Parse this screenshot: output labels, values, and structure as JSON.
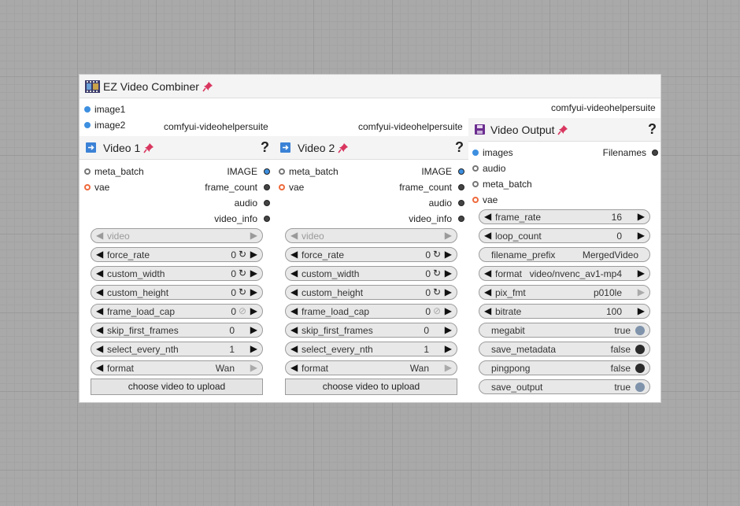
{
  "group": {
    "title": "EZ Video Combiner",
    "inputs": [
      {
        "label": "image1"
      },
      {
        "label": "image2"
      }
    ],
    "source_label": "comfyui-videohelpersuite"
  },
  "video1": {
    "source_label": "comfyui-videohelpersuite",
    "title": "Video 1",
    "help": "?",
    "inputs": [
      {
        "label": "meta_batch"
      },
      {
        "label": "vae"
      }
    ],
    "outputs": [
      {
        "label": "IMAGE"
      },
      {
        "label": "frame_count"
      },
      {
        "label": "audio"
      },
      {
        "label": "video_info"
      }
    ],
    "widgets": {
      "video": {
        "name": "video"
      },
      "force_rate": {
        "name": "force_rate",
        "value": "0"
      },
      "custom_width": {
        "name": "custom_width",
        "value": "0"
      },
      "custom_height": {
        "name": "custom_height",
        "value": "0"
      },
      "frame_load_cap": {
        "name": "frame_load_cap",
        "value": "0"
      },
      "skip_first_frames": {
        "name": "skip_first_frames",
        "value": "0"
      },
      "select_every_nth": {
        "name": "select_every_nth",
        "value": "1"
      },
      "format": {
        "name": "format",
        "value": "Wan"
      }
    },
    "upload_label": "choose video to upload"
  },
  "video2": {
    "source_label": "comfyui-videohelpersuite",
    "title": "Video 2",
    "help": "?",
    "inputs": [
      {
        "label": "meta_batch"
      },
      {
        "label": "vae"
      }
    ],
    "outputs": [
      {
        "label": "IMAGE"
      },
      {
        "label": "frame_count"
      },
      {
        "label": "audio"
      },
      {
        "label": "video_info"
      }
    ],
    "widgets": {
      "video": {
        "name": "video"
      },
      "force_rate": {
        "name": "force_rate",
        "value": "0"
      },
      "custom_width": {
        "name": "custom_width",
        "value": "0"
      },
      "custom_height": {
        "name": "custom_height",
        "value": "0"
      },
      "frame_load_cap": {
        "name": "frame_load_cap",
        "value": "0"
      },
      "skip_first_frames": {
        "name": "skip_first_frames",
        "value": "0"
      },
      "select_every_nth": {
        "name": "select_every_nth",
        "value": "1"
      },
      "format": {
        "name": "format",
        "value": "Wan"
      }
    },
    "upload_label": "choose video to upload"
  },
  "output": {
    "source_label": "comfyui-videohelpersuite",
    "title": "Video Output",
    "help": "?",
    "inputs": [
      {
        "label": "images"
      },
      {
        "label": "audio"
      },
      {
        "label": "meta_batch"
      },
      {
        "label": "vae"
      }
    ],
    "outputs": [
      {
        "label": "Filenames"
      }
    ],
    "widgets": {
      "frame_rate": {
        "name": "frame_rate",
        "value": "16"
      },
      "loop_count": {
        "name": "loop_count",
        "value": "0"
      },
      "filename_prefix": {
        "name": "filename_prefix",
        "value": "MergedVideo"
      },
      "format": {
        "name": "format",
        "value": "video/nvenc_av1-mp4"
      },
      "pix_fmt": {
        "name": "pix_fmt",
        "value": "p010le"
      },
      "bitrate": {
        "name": "bitrate",
        "value": "100"
      },
      "megabit": {
        "name": "megabit",
        "value": "true"
      },
      "save_metadata": {
        "name": "save_metadata",
        "value": "false"
      },
      "pingpong": {
        "name": "pingpong",
        "value": "false"
      },
      "save_output": {
        "name": "save_output",
        "value": "true"
      }
    }
  },
  "colors": {
    "pin": "#d9365f",
    "slot_image": "#3d8fe0",
    "slot_vae": "#ee6a3c",
    "toggle_true": "#7f93ab",
    "toggle_false": "#2b2b2b"
  },
  "icons": {
    "group": "film-strip-icon",
    "pin": "pin-icon",
    "video_node": "load-arrow-icon",
    "output_node": "floppy-disk-icon"
  }
}
